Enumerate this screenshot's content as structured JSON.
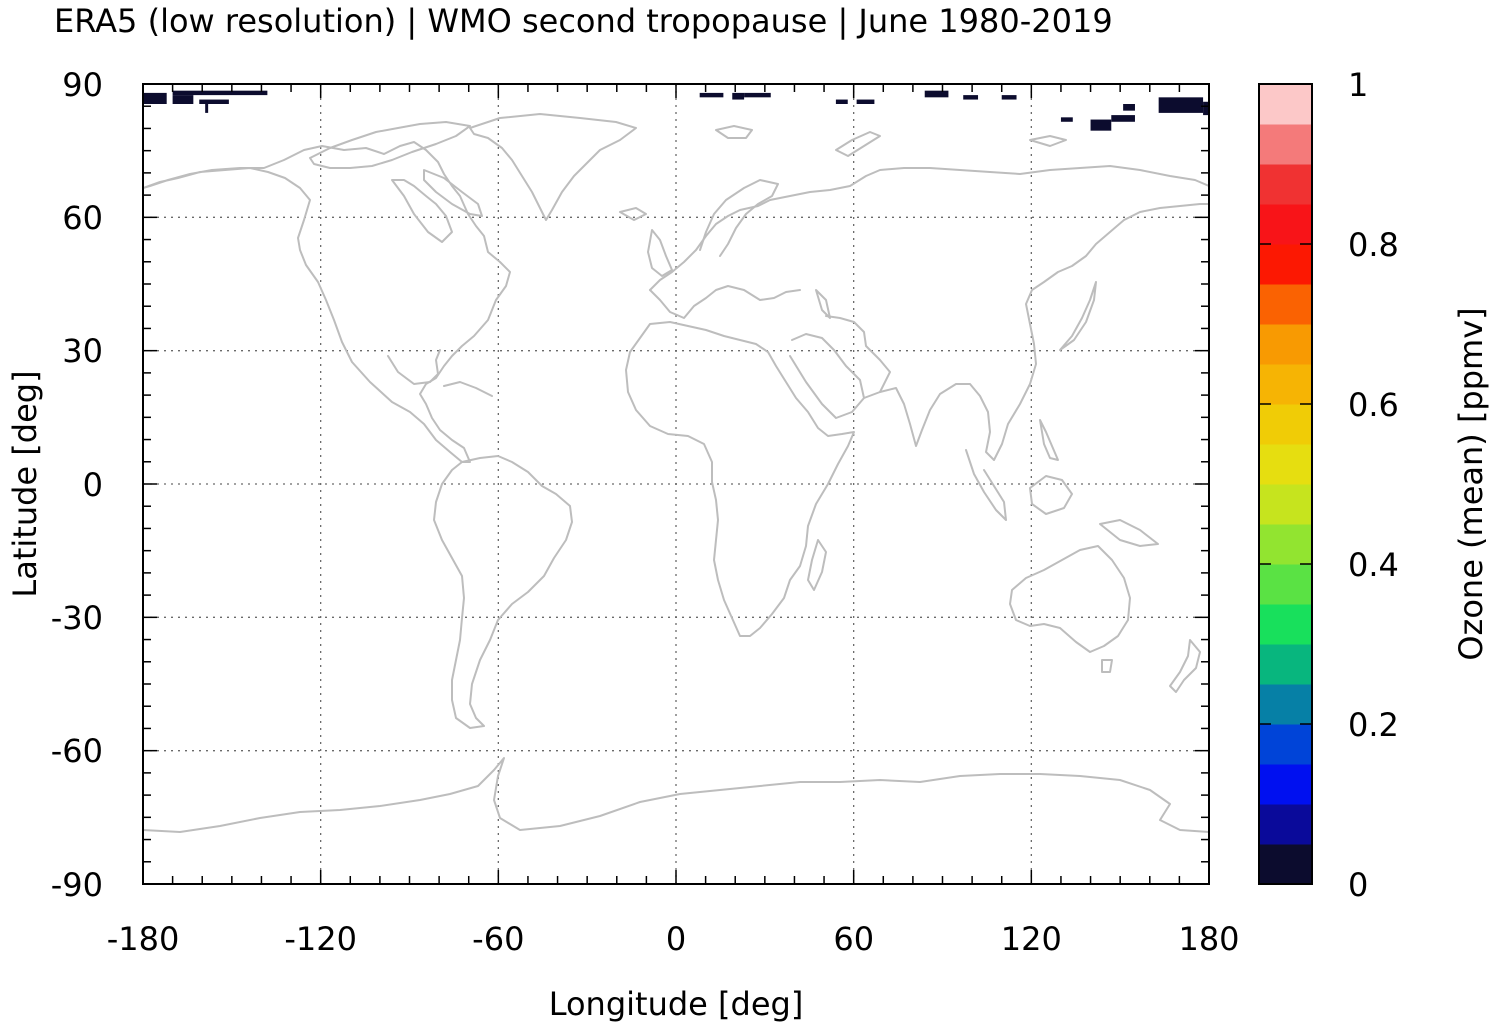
{
  "title": "ERA5 (low resolution) | WMO second tropopause | June 1980-2019",
  "x_axis": {
    "label": "Longitude [deg]",
    "range": [
      -180,
      180
    ],
    "ticks": [
      -180,
      -120,
      -60,
      0,
      60,
      120,
      180
    ],
    "tick_labels": [
      "-180",
      "-120",
      "-60",
      "0",
      "60",
      "120",
      "180"
    ]
  },
  "y_axis": {
    "label": "Latitude [deg]",
    "range": [
      -90,
      90
    ],
    "ticks": [
      90,
      60,
      30,
      0,
      -30,
      -60,
      -90
    ],
    "tick_labels": [
      "90",
      "60",
      "30",
      "0",
      "-30",
      "-60",
      "-90"
    ]
  },
  "colorbar": {
    "label": "Ozone (mean) [ppmv]",
    "range": [
      0,
      1
    ],
    "tick_labels": [
      "1",
      "0.8",
      "0.6",
      "0.4",
      "0.2",
      "0"
    ],
    "ticks": [
      1,
      0.8,
      0.6,
      0.4,
      0.2,
      0
    ],
    "colors": [
      "#0c0c2e",
      "#0a0a9a",
      "#0010f0",
      "#0044d8",
      "#0680a6",
      "#08b67e",
      "#18e05c",
      "#5ae244",
      "#92e430",
      "#c6e41e",
      "#e6de10",
      "#f0cc06",
      "#f6b404",
      "#f89a02",
      "#fa6202",
      "#fc1802",
      "#f81418",
      "#f03232",
      "#f47a7a",
      "#fcc8c8"
    ]
  },
  "chart_data": {
    "type": "heatmap",
    "title": "ERA5 (low resolution) | WMO second tropopause | June 1980-2019",
    "xlabel": "Longitude [deg]",
    "ylabel": "Latitude [deg]",
    "xlim": [
      -180,
      180
    ],
    "ylim": [
      -90,
      90
    ],
    "colorbar_label": "Ozone (mean) [ppmv]",
    "colorbar_range": [
      0,
      1
    ],
    "grid": true,
    "value_patches": [
      {
        "lon": [
          -180,
          -172
        ],
        "lat": [
          85.5,
          88
        ],
        "value": 0.02
      },
      {
        "lon": [
          -170,
          -138
        ],
        "lat": [
          87.5,
          88.5
        ],
        "value": 0.02
      },
      {
        "lon": [
          -170,
          -163
        ],
        "lat": [
          85.5,
          87.5
        ],
        "value": 0.02
      },
      {
        "lon": [
          -161,
          -151
        ],
        "lat": [
          85.5,
          86.5
        ],
        "value": 0.02
      },
      {
        "lon": [
          -159,
          -158
        ],
        "lat": [
          83.5,
          85.5
        ],
        "value": 0.02
      },
      {
        "lon": [
          8,
          16
        ],
        "lat": [
          87,
          88
        ],
        "value": 0.02
      },
      {
        "lon": [
          19,
          23
        ],
        "lat": [
          86.5,
          88
        ],
        "value": 0.02
      },
      {
        "lon": [
          23,
          32
        ],
        "lat": [
          87,
          88
        ],
        "value": 0.02
      },
      {
        "lon": [
          54,
          58
        ],
        "lat": [
          85.5,
          86.5
        ],
        "value": 0.02
      },
      {
        "lon": [
          61,
          67
        ],
        "lat": [
          85.5,
          86.5
        ],
        "value": 0.02
      },
      {
        "lon": [
          84,
          92
        ],
        "lat": [
          87,
          88.5
        ],
        "value": 0.02
      },
      {
        "lon": [
          97,
          102
        ],
        "lat": [
          86.5,
          87.5
        ],
        "value": 0.02
      },
      {
        "lon": [
          110,
          115
        ],
        "lat": [
          86.5,
          87.5
        ],
        "value": 0.02
      },
      {
        "lon": [
          163,
          178
        ],
        "lat": [
          83.5,
          87
        ],
        "value": 0.02
      },
      {
        "lon": [
          178,
          180
        ],
        "lat": [
          83,
          86
        ],
        "value": 0.02
      },
      {
        "lon": [
          140,
          147
        ],
        "lat": [
          79.5,
          82
        ],
        "value": 0.02
      },
      {
        "lon": [
          147,
          155
        ],
        "lat": [
          81.5,
          83
        ],
        "value": 0.02
      },
      {
        "lon": [
          130,
          134
        ],
        "lat": [
          81.5,
          82.5
        ],
        "value": 0.02
      },
      {
        "lon": [
          151,
          155
        ],
        "lat": [
          84,
          85.5
        ],
        "value": 0.02
      }
    ]
  }
}
